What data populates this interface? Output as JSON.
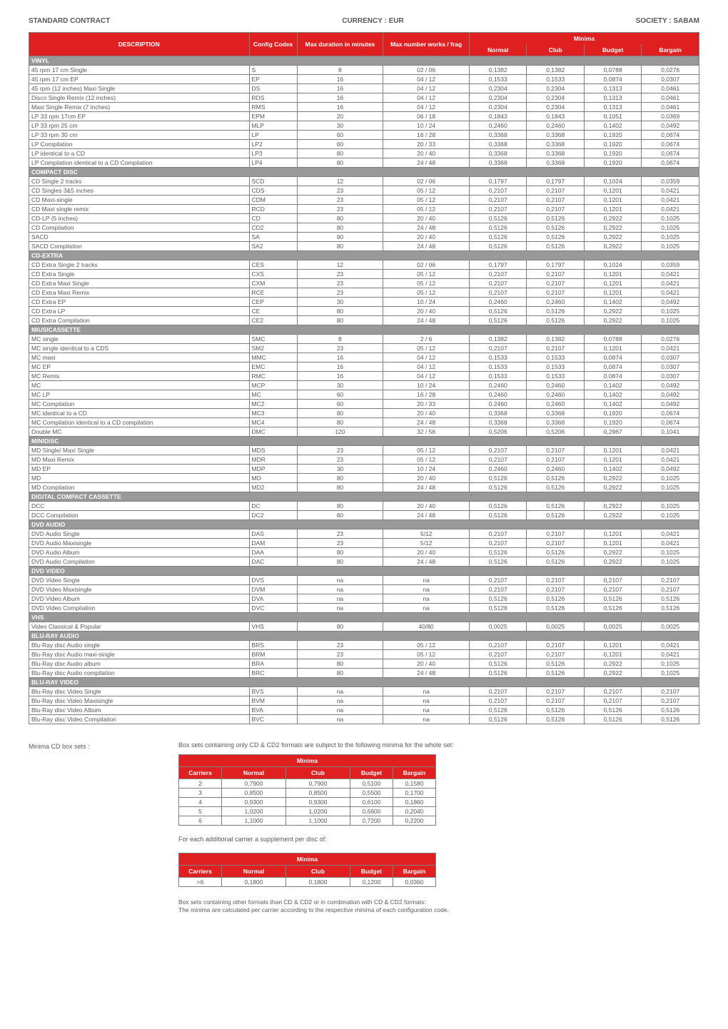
{
  "header": {
    "left": "STANDARD CONTRACT",
    "center": "CURRENCY : EUR",
    "right": "SOCIETY : SABAM"
  },
  "mainTable": {
    "columns": {
      "desc": "DESCRIPTION",
      "config": "Config Codes",
      "duration": "Max duration in minutes",
      "works": "Max number works / frag",
      "minima": "Minima",
      "normal": "Normal",
      "club": "Club",
      "budget": "Budget",
      "bargain": "Bargain"
    },
    "sections": [
      {
        "title": "VINYL",
        "rows": [
          [
            "45 rpm 17 cm Single",
            "S",
            "8",
            "02 / 06",
            "0,1382",
            "0,1382",
            "0,0788",
            "0,0276"
          ],
          [
            "45 rpm 17 cm EP",
            "EP",
            "16",
            "04 / 12",
            "0,1533",
            "0,1533",
            "0,0874",
            "0,0307"
          ],
          [
            "45 rpm (12 inches) Maxi Single",
            "DS",
            "16",
            "04 / 12",
            "0,2304",
            "0,2304",
            "0,1313",
            "0,0461"
          ],
          [
            "Disco Single Remix (12 inches)",
            "RDS",
            "16",
            "04 / 12",
            "0,2304",
            "0,2304",
            "0,1313",
            "0,0461"
          ],
          [
            "Maxi Single Remix (7 inches)",
            "RMS",
            "16",
            "04 / 12",
            "0,2304",
            "0,2304",
            "0,1313",
            "0,0461"
          ],
          [
            "LP 33 rpm 17cm  EP",
            "EPM",
            "20",
            "06 / 18",
            "0,1843",
            "0,1843",
            "0,1051",
            "0,0369"
          ],
          [
            "LP 33 rpm 25 cm",
            "MLP",
            "30",
            "10 / 24",
            "0,2460",
            "0,2460",
            "0,1402",
            "0,0492"
          ],
          [
            "LP 33 rpm 30 cm",
            "LP",
            "60",
            "16 / 28",
            "0,3368",
            "0,3368",
            "0,1920",
            "0,0674"
          ],
          [
            "LP Compilation",
            "LP2",
            "60",
            "20 / 33",
            "0,3368",
            "0,3368",
            "0,1920",
            "0,0674"
          ],
          [
            "LP identical to a CD",
            "LP3",
            "80",
            "20 / 40",
            "0,3368",
            "0,3368",
            "0,1920",
            "0,0674"
          ],
          [
            "LP Compilation identical to a CD Compilation",
            "LP4",
            "80",
            "24 / 48",
            "0,3368",
            "0,3368",
            "0,1920",
            "0,0674"
          ]
        ]
      },
      {
        "title": "COMPACT DISC",
        "rows": [
          [
            "CD Single 2 tracks",
            "SCD",
            "12",
            "02 / 06",
            "0,1797",
            "0,1797",
            "0,1024",
            "0,0359"
          ],
          [
            "CD Singles 3&5 inches",
            "CDS",
            "23",
            "05 / 12",
            "0,2107",
            "0,2107",
            "0,1201",
            "0,0421"
          ],
          [
            "CD Maxi-single",
            "CDM",
            "23",
            "05 / 12",
            "0,2107",
            "0,2107",
            "0,1201",
            "0,0421"
          ],
          [
            "CD Maxi single remix",
            "RCD",
            "23",
            "05 / 12",
            "0,2107",
            "0,2107",
            "0,1201",
            "0,0421"
          ],
          [
            "CD-LP (5 inches)",
            "CD",
            "80",
            "20 / 40",
            "0,5126",
            "0,5126",
            "0,2922",
            "0,1025"
          ],
          [
            "CD Compilation",
            "CD2",
            "80",
            "24 / 48",
            "0,5126",
            "0,5126",
            "0,2922",
            "0,1025"
          ],
          [
            "SACD",
            "SA",
            "80",
            "20 / 40",
            "0,5126",
            "0,5126",
            "0,2922",
            "0,1025"
          ],
          [
            "SACD Compilation",
            "SA2",
            "80",
            "24 / 48",
            "0,5126",
            "0,5126",
            "0,2922",
            "0,1025"
          ]
        ]
      },
      {
        "title": "CD-EXTRA",
        "rows": [
          [
            "CD Extra Single 2 tracks",
            "CES",
            "12",
            "02 / 06",
            "0,1797",
            "0,1797",
            "0,1024",
            "0,0359"
          ],
          [
            "CD Extra Single",
            "CXS",
            "23",
            "05 / 12",
            "0,2107",
            "0,2107",
            "0,1201",
            "0,0421"
          ],
          [
            "CD Extra Maxi Single",
            "CXM",
            "23",
            "05 / 12",
            "0,2107",
            "0,2107",
            "0,1201",
            "0,0421"
          ],
          [
            "CD Extra Maxi Remix",
            "RCE",
            "23",
            "05 / 12",
            "0,2107",
            "0,2107",
            "0,1201",
            "0,0421"
          ],
          [
            "CD Extra EP",
            "CEP",
            "30",
            "10 / 24",
            "0,2460",
            "0,2460",
            "0,1402",
            "0,0492"
          ],
          [
            "CD Extra LP",
            "CE",
            "80",
            "20 / 40",
            "0,5126",
            "0,5126",
            "0,2922",
            "0,1025"
          ],
          [
            "CD Extra Compilation",
            "CE2",
            "80",
            "24 / 48",
            "0,5126",
            "0,5126",
            "0,2922",
            "0,1025"
          ]
        ]
      },
      {
        "title": "MIUSICASSETTE",
        "rows": [
          [
            "MC single",
            "SMC",
            "8",
            "2 / 6",
            "0,1382",
            "0,1382",
            "0,0788",
            "0,0276"
          ],
          [
            "MC single identical to a CDS",
            "SM2",
            "23",
            "05 / 12",
            "0,2107",
            "0,2107",
            "0,1201",
            "0,0421"
          ],
          [
            "MC maxi",
            "MMC",
            "16",
            "04 / 12",
            "0,1533",
            "0,1533",
            "0,0874",
            "0,0307"
          ],
          [
            "MC EP",
            "EMC",
            "16",
            "04 / 12",
            "0,1533",
            "0,1533",
            "0,0874",
            "0,0307"
          ],
          [
            "MC Remix",
            "RMC",
            "16",
            "04 / 12",
            "0,1533",
            "0,1533",
            "0,0874",
            "0,0307"
          ],
          [
            "MC",
            "MCP",
            "30",
            "10 / 24",
            "0,2460",
            "0,2460",
            "0,1402",
            "0,0492"
          ],
          [
            "MC LP",
            "MC",
            "60",
            "16 / 28",
            "0,2460",
            "0,2460",
            "0,1402",
            "0,0492"
          ],
          [
            "MC Compilation",
            "MC2",
            "60",
            "20 / 33",
            "0,2460",
            "0,2460",
            "0,1402",
            "0,0492"
          ],
          [
            "MC identical to a CD",
            "MC3",
            "80",
            "20 / 40",
            "0,3368",
            "0,3368",
            "0,1920",
            "0,0674"
          ],
          [
            "MC Compilation identical to a CD compilation",
            "MC4",
            "80",
            "24 / 48",
            "0,3368",
            "0,3368",
            "0,1920",
            "0,0674"
          ],
          [
            "Double MC",
            "DMC",
            "120",
            "32 / 56",
            "0,5206",
            "0,5206",
            "0,2967",
            "0,1041"
          ]
        ]
      },
      {
        "title": "MINIDISC",
        "rows": [
          [
            "MD Single/ Maxi Single",
            "MDS",
            "23",
            "05 / 12",
            "0,2107",
            "0,2107",
            "0,1201",
            "0,0421"
          ],
          [
            "MD Maxi Remix",
            "MDR",
            "23",
            "05 / 12",
            "0,2107",
            "0,2107",
            "0,1201",
            "0,0421"
          ],
          [
            "MD EP",
            "MDP",
            "30",
            "10 / 24",
            "0,2460",
            "0,2460",
            "0,1402",
            "0,0492"
          ],
          [
            "MD",
            "MD",
            "80",
            "20 / 40",
            "0,5126",
            "0,5126",
            "0,2922",
            "0,1025"
          ],
          [
            "MD Compilation",
            "MD2",
            "80",
            "24 / 48",
            "0,5126",
            "0,5126",
            "0,2922",
            "0,1025"
          ]
        ]
      },
      {
        "title": "DIGITAL COMPACT CASSETTE",
        "rows": [
          [
            "DCC",
            "DC",
            "80",
            "20 / 40",
            "0,5126",
            "0,5126",
            "0,2922",
            "0,1025"
          ],
          [
            "DCC Compilation",
            "DC2",
            "80",
            "24 / 48",
            "0,5126",
            "0,5126",
            "0,2922",
            "0,1025"
          ]
        ]
      },
      {
        "title": "DVD AUDIO",
        "rows": [
          [
            "DVD Audio Single",
            "DAS",
            "23",
            "5/12",
            "0,2107",
            "0,2107",
            "0,1201",
            "0,0421"
          ],
          [
            "DVD Audio Maxisingle",
            "DAM",
            "23",
            "5/12",
            "0,2107",
            "0,2107",
            "0,1201",
            "0,0421"
          ],
          [
            "DVD Audio Album",
            "DAA",
            "80",
            "20 / 40",
            "0,5126",
            "0,5126",
            "0,2922",
            "0,1025"
          ],
          [
            "DVD Audio Compilation",
            "DAC",
            "80",
            "24 / 48",
            "0,5126",
            "0,5126",
            "0,2922",
            "0,1025"
          ]
        ]
      },
      {
        "title": "DVD VIDEO",
        "rows": [
          [
            "DVD Video Single",
            "DVS",
            "na",
            "na",
            "0,2107",
            "0,2107",
            "0,2107",
            "0,2107"
          ],
          [
            "DVD Video Maxisingle",
            "DVM",
            "na",
            "na",
            "0,2107",
            "0,2107",
            "0,2107",
            "0,2107"
          ],
          [
            "DVD Video Album",
            "DVA",
            "na",
            "na",
            "0,5126",
            "0,5126",
            "0,5126",
            "0,5126"
          ],
          [
            "DVD Video Compilation",
            "DVC",
            "na",
            "na",
            "0,5126",
            "0,5126",
            "0,5126",
            "0,5126"
          ]
        ]
      },
      {
        "title": "VHS",
        "rows": [
          [
            "Video Classical & Popular",
            "VHS",
            "80",
            "40/80",
            "0,0025",
            "0,0025",
            "0,0025",
            "0,0025"
          ]
        ]
      },
      {
        "title": "BLU-RAY AUDIO",
        "rows": [
          [
            "Blu-Ray disc Audio single",
            "BRS",
            "23",
            "05 / 12",
            "0,2107",
            "0,2107",
            "0,1201",
            "0,0421"
          ],
          [
            "Blu-Ray disc Audio maxi-single",
            "BRM",
            "23",
            "05 / 12",
            "0,2107",
            "0,2107",
            "0,1201",
            "0,0421"
          ],
          [
            "Blu-Ray disc Audio album",
            "BRA",
            "80",
            "20 / 40",
            "0,5126",
            "0,5126",
            "0,2922",
            "0,1025"
          ],
          [
            "Blu-Ray disc Audio compilation",
            "BRC",
            "80",
            "24 / 48",
            "0,5126",
            "0,5126",
            "0,2922",
            "0,1025"
          ]
        ]
      },
      {
        "title": "BLU-RAY VIDEO",
        "rows": [
          [
            "Blu-Ray disc Video Single",
            "BVS",
            "na",
            "na",
            "0,2107",
            "0,2107",
            "0,2107",
            "0,2107"
          ],
          [
            "Blu-Ray disc Video Maxisingle",
            "BVM",
            "na",
            "na",
            "0,2107",
            "0,2107",
            "0,2107",
            "0,2107"
          ],
          [
            "Blu-Ray disc Video Album",
            "BVA",
            "na",
            "na",
            "0,5126",
            "0,5126",
            "0,5126",
            "0,5126"
          ],
          [
            "Blu-Ray disc Video Compilation",
            "BVC",
            "na",
            "na",
            "0,5126",
            "0,5126",
            "0,5126",
            "0,5126"
          ]
        ]
      }
    ]
  },
  "boxSets": {
    "label": "Minima CD box sets :",
    "note": "Box sets containing only CD & CD2 formats are subject to the following minima for the whole set:",
    "headers": {
      "minima": "Minima",
      "carriers": "Carriers",
      "normal": "Normal",
      "club": "Club",
      "budget": "Budget",
      "bargain": "Bargain"
    },
    "rows": [
      [
        "2",
        "0,7900",
        "0,7900",
        "0,5100",
        "0,1580"
      ],
      [
        "3",
        "0,8500",
        "0,8500",
        "0,5500",
        "0,1700"
      ],
      [
        "4",
        "0,9300",
        "0,9300",
        "0,6100",
        "0,1860"
      ],
      [
        "5",
        "1,0200",
        "1,0200",
        "0,6600",
        "0,2040"
      ],
      [
        "6",
        "1,1000",
        "1,1000",
        "0,7200",
        "0,2200"
      ]
    ],
    "afterNote": "For each additional carrier a supplement per disc of:",
    "extraRow": [
      ">6",
      "0,1800",
      "0,1800",
      "0,1200",
      "0,0360"
    ]
  },
  "footer": {
    "line1": "Box sets containing other formats than CD & CD2 or in combination with CD & CD2 formats:",
    "line2": "The minima are calculated per carrier according to the respective minima of each configuration code."
  }
}
